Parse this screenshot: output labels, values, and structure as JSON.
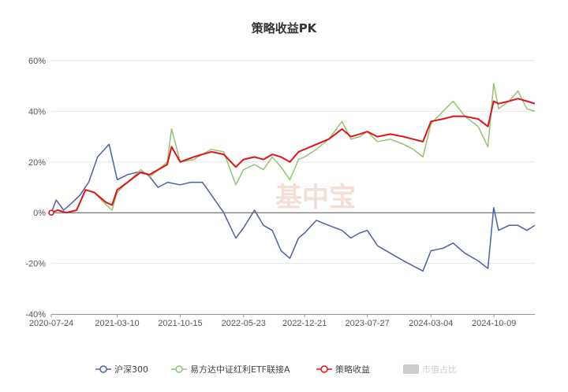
{
  "chart_data": {
    "type": "line",
    "title": "策略收益PK",
    "watermark": "基中宝",
    "y_unit": "%",
    "ylim": [
      -40,
      60
    ],
    "y_ticks": [
      -40,
      -20,
      0,
      20,
      40,
      60
    ],
    "y_tick_labels": [
      "-40%",
      "-20%",
      "0%",
      "20%",
      "40%",
      "60%"
    ],
    "x_tick_labels": [
      "2020-07-24",
      "2021-03-10",
      "2021-10-15",
      "2022-05-23",
      "2022-12-21",
      "2023-07-27",
      "2024-03-04",
      "2024-10-09"
    ],
    "xlim": [
      "2020-07-24",
      "2025-02-28"
    ],
    "grid": "horizontal",
    "legend_position": "bottom-center",
    "legend": [
      {
        "name": "沪深300",
        "color": "#4e5fa8",
        "active": true
      },
      {
        "name": "易方达中证红利ETF联接A",
        "color": "#91c46f",
        "active": true
      },
      {
        "name": "策略收益",
        "color": "#e0141a",
        "active": true
      },
      {
        "name": "市值占比",
        "color": "#cccccc",
        "active": false
      }
    ],
    "series": [
      {
        "name": "沪深300",
        "color": "#4e5fa8",
        "points": [
          [
            "2020-07-24",
            0
          ],
          [
            "2020-08-10",
            5
          ],
          [
            "2020-09-05",
            1
          ],
          [
            "2020-10-05",
            4
          ],
          [
            "2020-11-01",
            7
          ],
          [
            "2020-12-01",
            12
          ],
          [
            "2021-01-01",
            22
          ],
          [
            "2021-02-10",
            27
          ],
          [
            "2021-03-10",
            13
          ],
          [
            "2021-04-15",
            15
          ],
          [
            "2021-05-20",
            16
          ],
          [
            "2021-06-25",
            15
          ],
          [
            "2021-07-30",
            10
          ],
          [
            "2021-09-01",
            12
          ],
          [
            "2021-10-15",
            11
          ],
          [
            "2021-11-20",
            12
          ],
          [
            "2021-12-31",
            12
          ],
          [
            "2022-01-31",
            7
          ],
          [
            "2022-03-15",
            0
          ],
          [
            "2022-04-26",
            -10
          ],
          [
            "2022-05-23",
            -6
          ],
          [
            "2022-06-30",
            1
          ],
          [
            "2022-07-31",
            -5
          ],
          [
            "2022-08-31",
            -7
          ],
          [
            "2022-09-30",
            -15
          ],
          [
            "2022-10-31",
            -18
          ],
          [
            "2022-11-30",
            -10
          ],
          [
            "2022-12-21",
            -8
          ],
          [
            "2023-01-31",
            -3
          ],
          [
            "2023-03-15",
            -5
          ],
          [
            "2023-04-30",
            -7
          ],
          [
            "2023-05-31",
            -10
          ],
          [
            "2023-06-30",
            -8
          ],
          [
            "2023-07-27",
            -7
          ],
          [
            "2023-08-31",
            -13
          ],
          [
            "2023-10-15",
            -16
          ],
          [
            "2023-11-30",
            -19
          ],
          [
            "2024-01-02",
            -21
          ],
          [
            "2024-02-05",
            -23
          ],
          [
            "2024-03-04",
            -15
          ],
          [
            "2024-04-15",
            -14
          ],
          [
            "2024-05-20",
            -12
          ],
          [
            "2024-06-30",
            -16
          ],
          [
            "2024-08-15",
            -19
          ],
          [
            "2024-09-18",
            -22
          ],
          [
            "2024-10-08",
            2
          ],
          [
            "2024-10-25",
            -7
          ],
          [
            "2024-11-30",
            -5
          ],
          [
            "2024-12-31",
            -5
          ],
          [
            "2025-01-31",
            -7
          ],
          [
            "2025-02-28",
            -5
          ]
        ]
      },
      {
        "name": "易方达中证红利ETF联接A",
        "color": "#91c46f",
        "points": [
          [
            "2020-07-24",
            0
          ],
          [
            "2020-08-15",
            1
          ],
          [
            "2020-09-15",
            0
          ],
          [
            "2020-10-20",
            1
          ],
          [
            "2020-11-20",
            9
          ],
          [
            "2020-12-20",
            8
          ],
          [
            "2021-01-31",
            3
          ],
          [
            "2021-02-20",
            1
          ],
          [
            "2021-03-10",
            8
          ],
          [
            "2021-04-15",
            12
          ],
          [
            "2021-05-31",
            17
          ],
          [
            "2021-06-30",
            14
          ],
          [
            "2021-07-31",
            17
          ],
          [
            "2021-08-31",
            20
          ],
          [
            "2021-09-15",
            33
          ],
          [
            "2021-10-15",
            20
          ],
          [
            "2021-11-30",
            21
          ],
          [
            "2021-12-31",
            23
          ],
          [
            "2022-01-31",
            25
          ],
          [
            "2022-03-15",
            24
          ],
          [
            "2022-04-26",
            11
          ],
          [
            "2022-05-23",
            17
          ],
          [
            "2022-06-30",
            19
          ],
          [
            "2022-07-31",
            17
          ],
          [
            "2022-08-31",
            22
          ],
          [
            "2022-09-30",
            18
          ],
          [
            "2022-10-31",
            13
          ],
          [
            "2022-11-30",
            21
          ],
          [
            "2022-12-21",
            22
          ],
          [
            "2023-01-31",
            25
          ],
          [
            "2023-03-15",
            29
          ],
          [
            "2023-04-30",
            36
          ],
          [
            "2023-05-31",
            29
          ],
          [
            "2023-06-30",
            30
          ],
          [
            "2023-07-27",
            32
          ],
          [
            "2023-08-31",
            28
          ],
          [
            "2023-10-15",
            29
          ],
          [
            "2023-11-30",
            27
          ],
          [
            "2024-01-02",
            25
          ],
          [
            "2024-02-05",
            22
          ],
          [
            "2024-03-04",
            35
          ],
          [
            "2024-04-15",
            40
          ],
          [
            "2024-05-20",
            44
          ],
          [
            "2024-06-30",
            38
          ],
          [
            "2024-08-15",
            34
          ],
          [
            "2024-09-18",
            26
          ],
          [
            "2024-10-08",
            51
          ],
          [
            "2024-10-25",
            41
          ],
          [
            "2024-11-30",
            44
          ],
          [
            "2024-12-31",
            48
          ],
          [
            "2025-01-31",
            41
          ],
          [
            "2025-02-28",
            40
          ]
        ]
      },
      {
        "name": "策略收益",
        "color": "#e0141a",
        "points": [
          [
            "2020-07-24",
            0
          ],
          [
            "2020-08-15",
            1
          ],
          [
            "2020-09-15",
            0
          ],
          [
            "2020-10-20",
            1
          ],
          [
            "2020-11-20",
            9
          ],
          [
            "2020-12-20",
            8
          ],
          [
            "2021-01-31",
            4
          ],
          [
            "2021-02-20",
            3
          ],
          [
            "2021-03-10",
            9
          ],
          [
            "2021-04-15",
            12
          ],
          [
            "2021-05-31",
            16
          ],
          [
            "2021-06-30",
            15
          ],
          [
            "2021-07-31",
            17
          ],
          [
            "2021-08-31",
            19
          ],
          [
            "2021-09-15",
            26
          ],
          [
            "2021-10-15",
            20
          ],
          [
            "2021-11-30",
            22
          ],
          [
            "2021-12-31",
            23
          ],
          [
            "2022-01-31",
            24
          ],
          [
            "2022-03-15",
            23
          ],
          [
            "2022-04-26",
            18
          ],
          [
            "2022-05-23",
            21
          ],
          [
            "2022-06-30",
            22
          ],
          [
            "2022-07-31",
            21
          ],
          [
            "2022-08-31",
            23
          ],
          [
            "2022-09-30",
            22
          ],
          [
            "2022-10-31",
            20
          ],
          [
            "2022-11-30",
            24
          ],
          [
            "2022-12-21",
            25
          ],
          [
            "2023-01-31",
            27
          ],
          [
            "2023-03-15",
            29
          ],
          [
            "2023-04-30",
            33
          ],
          [
            "2023-05-31",
            30
          ],
          [
            "2023-06-30",
            31
          ],
          [
            "2023-07-27",
            32
          ],
          [
            "2023-08-31",
            30
          ],
          [
            "2023-10-15",
            31
          ],
          [
            "2023-11-30",
            30
          ],
          [
            "2024-01-02",
            29
          ],
          [
            "2024-02-05",
            28
          ],
          [
            "2024-03-04",
            36
          ],
          [
            "2024-04-15",
            37
          ],
          [
            "2024-05-20",
            38
          ],
          [
            "2024-06-30",
            38
          ],
          [
            "2024-08-15",
            37
          ],
          [
            "2024-09-18",
            34
          ],
          [
            "2024-10-08",
            44
          ],
          [
            "2024-10-25",
            43
          ],
          [
            "2024-11-30",
            44
          ],
          [
            "2024-12-31",
            45
          ],
          [
            "2025-01-31",
            44
          ],
          [
            "2025-02-28",
            43
          ]
        ]
      }
    ]
  }
}
